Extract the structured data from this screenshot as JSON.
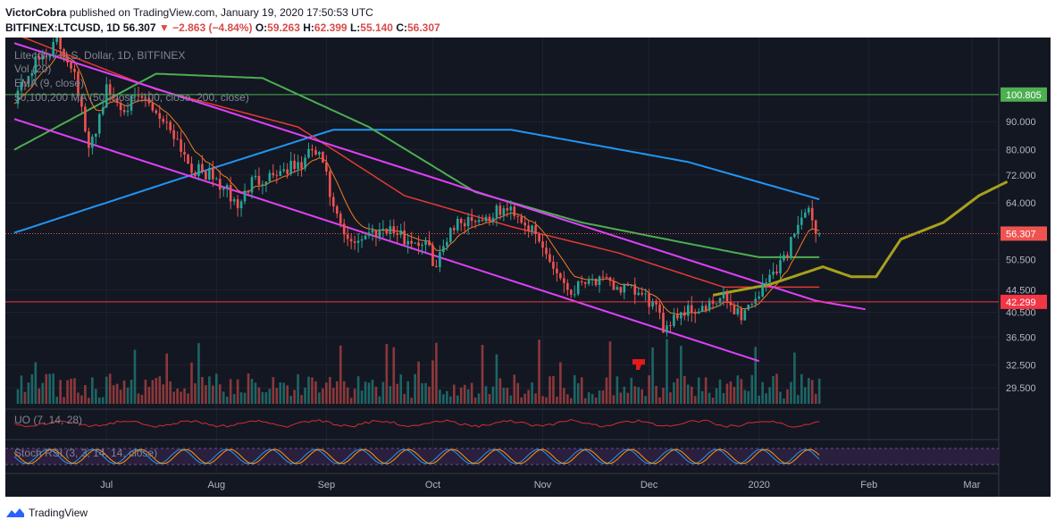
{
  "header": {
    "author": "VictorCobra",
    "published_text": "published on TradingView.com, January 19, 2020 17:50:53 UTC",
    "symbol": "BITFINEX:LTCUSD, 1D",
    "last": "56.307",
    "change": "−2.863 (−4.84%)",
    "o_label": "O:",
    "o": "59.263",
    "h_label": "H:",
    "h": "62.399",
    "l_label": "L:",
    "l": "55.140",
    "c_label": "C:",
    "c": "56.307"
  },
  "legend": {
    "instrument": "Litecoin / U.S. Dollar, 1D, BITFINEX",
    "vol": "Vol (20)",
    "ema": "EMA (9, close)",
    "ma": "50,100,200 MA (50, close, 100, close, 200, close)",
    "uo": "UO (7, 14, 28)",
    "stoch": "Stoch RSI (3, 3, 14, 14, close)"
  },
  "footer": {
    "brand": "TradingView"
  },
  "colors": {
    "background": "#131722",
    "up": "#26a69a",
    "down": "#ef5350",
    "ema": "#f57c1f",
    "ma50": "#e53935",
    "ma100": "#4caf50",
    "ma200": "#2196f3",
    "channel": "#e040fb",
    "projection": "#a8a01c",
    "resistance": "#4caf50",
    "support": "#f23645"
  },
  "chart_data": {
    "type": "candlestick",
    "x_labels": [
      "Jul",
      "Aug",
      "Sep",
      "Oct",
      "Nov",
      "Dec",
      "2020",
      "Feb",
      "Mar"
    ],
    "y_ticks": [
      29.5,
      32.5,
      36.5,
      40.5,
      44.5,
      50.5,
      56.307,
      64.0,
      72.0,
      80.0,
      90.0,
      100.805
    ],
    "y_tick_labels": [
      "29.500",
      "32.500",
      "36.500",
      "40.500",
      "44.500",
      "50.500",
      "56.307",
      "64.000",
      "72.000",
      "80.000",
      "90.000",
      "100.805"
    ],
    "y_scale": "log",
    "ylim": [
      27.6,
      128
    ],
    "price_path": [
      [
        0,
        100
      ],
      [
        6,
        115
      ],
      [
        12,
        125
      ],
      [
        17,
        112
      ],
      [
        21,
        79
      ],
      [
        26,
        103
      ],
      [
        30,
        96
      ],
      [
        36,
        99
      ],
      [
        40,
        94
      ],
      [
        45,
        86
      ],
      [
        50,
        74
      ],
      [
        55,
        72
      ],
      [
        60,
        67
      ],
      [
        63,
        63
      ],
      [
        67,
        70
      ],
      [
        72,
        72
      ],
      [
        77,
        74
      ],
      [
        81,
        75
      ],
      [
        84,
        80
      ],
      [
        87,
        76
      ],
      [
        90,
        62
      ],
      [
        94,
        54
      ],
      [
        99,
        56
      ],
      [
        105,
        58
      ],
      [
        110,
        55
      ],
      [
        116,
        54
      ],
      [
        119,
        49
      ],
      [
        123,
        58
      ],
      [
        128,
        60
      ],
      [
        133,
        60
      ],
      [
        137,
        62
      ],
      [
        141,
        62
      ],
      [
        145,
        58
      ],
      [
        149,
        53
      ],
      [
        153,
        48
      ],
      [
        157,
        44
      ],
      [
        161,
        47
      ],
      [
        165,
        46
      ],
      [
        170,
        45
      ],
      [
        175,
        44
      ],
      [
        180,
        42
      ],
      [
        183,
        38
      ],
      [
        186,
        40
      ],
      [
        190,
        41
      ],
      [
        195,
        41
      ],
      [
        200,
        43
      ],
      [
        205,
        40
      ],
      [
        210,
        44
      ],
      [
        214,
        48
      ],
      [
        218,
        52
      ],
      [
        221,
        60
      ],
      [
        224,
        61
      ],
      [
        227,
        56.3
      ]
    ],
    "ema9_last": 56.3,
    "ma50_points": [
      [
        0,
        130
      ],
      [
        40,
        103
      ],
      [
        80,
        88
      ],
      [
        110,
        66
      ],
      [
        140,
        58
      ],
      [
        170,
        52
      ],
      [
        200,
        45
      ],
      [
        227,
        45
      ]
    ],
    "ma100_points": [
      [
        0,
        80
      ],
      [
        40,
        110
      ],
      [
        70,
        108
      ],
      [
        100,
        88
      ],
      [
        130,
        67
      ],
      [
        160,
        59
      ],
      [
        190,
        54
      ],
      [
        210,
        51
      ],
      [
        227,
        51
      ]
    ],
    "ma200_points": [
      [
        0,
        56.5
      ],
      [
        50,
        72
      ],
      [
        90,
        87
      ],
      [
        140,
        87
      ],
      [
        190,
        76
      ],
      [
        227,
        65
      ]
    ],
    "projection_points": [
      [
        197,
        43.5
      ],
      [
        213,
        45.5
      ],
      [
        228,
        49
      ],
      [
        236,
        47
      ],
      [
        243,
        47
      ],
      [
        250,
        55
      ],
      [
        262,
        59
      ],
      [
        272,
        66
      ],
      [
        280,
        70
      ]
    ],
    "channel_upper": [
      [
        0,
        125
      ],
      [
        226,
        42.5
      ],
      [
        240,
        41
      ]
    ],
    "channel_lower": [
      [
        0,
        91
      ],
      [
        210,
        33
      ]
    ],
    "resistance_level": 100.805,
    "support_level": 42.299,
    "last_price": 56.307,
    "last_price_label": "56.307",
    "resistance_label": "100.805",
    "support_label": "42.299",
    "volume_note": "Vol (20)",
    "uo_range": [
      0,
      100
    ],
    "stoch_range": [
      0,
      100
    ]
  }
}
